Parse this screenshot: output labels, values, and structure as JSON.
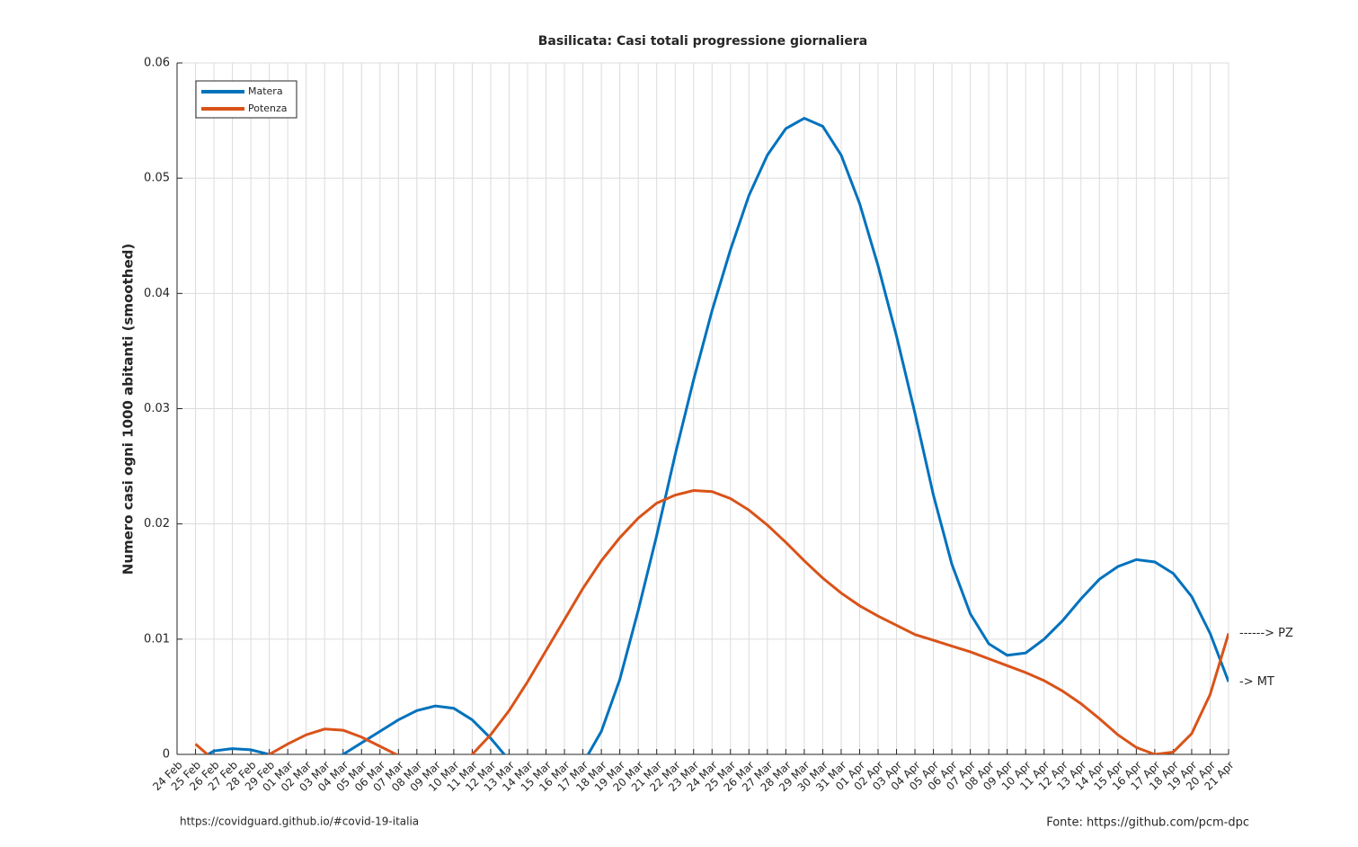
{
  "chart_data": {
    "type": "line",
    "title": "Basilicata: Casi totali progressione giornaliera",
    "ylabel": "Numero casi ogni 1000 abitanti (smoothed)",
    "categories": [
      "24 Feb",
      "25 Feb",
      "26 Feb",
      "27 Feb",
      "28 Feb",
      "29 Feb",
      "01 Mar",
      "02 Mar",
      "03 Mar",
      "04 Mar",
      "05 Mar",
      "06 Mar",
      "07 Mar",
      "08 Mar",
      "09 Mar",
      "10 Mar",
      "11 Mar",
      "12 Mar",
      "13 Mar",
      "14 Mar",
      "15 Mar",
      "16 Mar",
      "17 Mar",
      "18 Mar",
      "19 Mar",
      "20 Mar",
      "21 Mar",
      "22 Mar",
      "23 Mar",
      "24 Mar",
      "25 Mar",
      "26 Mar",
      "27 Mar",
      "28 Mar",
      "29 Mar",
      "30 Mar",
      "31 Mar",
      "01 Apr",
      "02 Apr",
      "03 Apr",
      "04 Apr",
      "05 Apr",
      "06 Apr",
      "07 Apr",
      "08 Apr",
      "09 Apr",
      "10 Apr",
      "11 Apr",
      "12 Apr",
      "13 Apr",
      "14 Apr",
      "15 Apr",
      "16 Apr",
      "17 Apr",
      "18 Apr",
      "19 Apr",
      "20 Apr",
      "21 Apr"
    ],
    "series": [
      {
        "name": "Matera",
        "color": "#0072bd",
        "values": [
          null,
          -0.0006,
          0.0003,
          0.0005,
          0.0004,
          0.0,
          -0.0008,
          -0.0012,
          -0.0008,
          0.0,
          0.001,
          0.002,
          0.003,
          0.0038,
          0.0042,
          0.004,
          0.003,
          0.0014,
          -0.0005,
          -0.0025,
          -0.004,
          -0.004,
          -0.0008,
          0.002,
          0.0065,
          0.0125,
          0.019,
          0.026,
          0.0325,
          0.0385,
          0.0438,
          0.0485,
          0.052,
          0.0543,
          0.0552,
          0.0545,
          0.052,
          0.0478,
          0.0424,
          0.0363,
          0.0296,
          0.0225,
          0.0165,
          0.0122,
          0.0096,
          0.0086,
          0.0088,
          0.01,
          0.0116,
          0.0135,
          0.0152,
          0.0163,
          0.0169,
          0.0167,
          0.0157,
          0.0137,
          0.0105,
          0.0063
        ]
      },
      {
        "name": "Potenza",
        "color": "#d95319",
        "values": [
          null,
          0.0009,
          -0.0005,
          -0.0012,
          -0.001,
          0.0,
          0.0009,
          0.0017,
          0.0022,
          0.0021,
          0.0015,
          0.0007,
          -0.0001,
          -0.0012,
          -0.0014,
          -0.0008,
          0.0,
          0.0017,
          0.0038,
          0.0063,
          0.009,
          0.0117,
          0.0144,
          0.0168,
          0.0188,
          0.0205,
          0.0218,
          0.0225,
          0.0229,
          0.0228,
          0.0222,
          0.0212,
          0.0199,
          0.0184,
          0.0168,
          0.0153,
          0.014,
          0.0129,
          0.012,
          0.0112,
          0.0104,
          0.0099,
          0.0094,
          0.0089,
          0.0083,
          0.0077,
          0.0071,
          0.0064,
          0.0055,
          0.0044,
          0.0031,
          0.0017,
          0.0006,
          0.0,
          0.0002,
          0.0018,
          0.0052,
          0.0105
        ]
      }
    ],
    "ylim": [
      0,
      0.06
    ],
    "yticks": [
      0,
      0.01,
      0.02,
      0.03,
      0.04,
      0.05,
      0.06
    ],
    "grid": true,
    "legend": "northwest",
    "annotations": [
      "------> PZ",
      "-> MT"
    ],
    "source_left": "https://covidguard.github.io/#covid-19-italia",
    "source_right": "Fonte: https://github.com/pcm-dpc"
  }
}
